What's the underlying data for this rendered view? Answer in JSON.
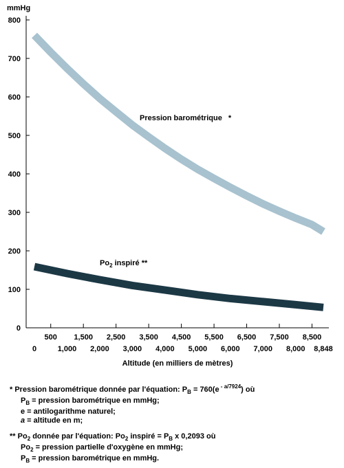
{
  "chart_data": {
    "type": "line",
    "y_unit": "mmHg",
    "xlabel": "Altitude (en milliers de mètres)",
    "ylim": [
      0,
      800
    ],
    "xlim": [
      0,
      8848
    ],
    "y_ticks": [
      "0",
      "100",
      "200",
      "300",
      "400",
      "500",
      "600",
      "700",
      "800"
    ],
    "x_ticks_top": [
      {
        "x": 500,
        "label": "500"
      },
      {
        "x": 1500,
        "label": "1,500"
      },
      {
        "x": 2500,
        "label": "2,500"
      },
      {
        "x": 3500,
        "label": "3,500"
      },
      {
        "x": 4500,
        "label": "4,500"
      },
      {
        "x": 5500,
        "label": "5,500"
      },
      {
        "x": 6500,
        "label": "6,500"
      },
      {
        "x": 7500,
        "label": "7,500"
      },
      {
        "x": 8500,
        "label": "8,500"
      }
    ],
    "x_ticks_bottom": [
      {
        "x": 0,
        "label": "0"
      },
      {
        "x": 1000,
        "label": "1,000"
      },
      {
        "x": 2000,
        "label": "2,000"
      },
      {
        "x": 3000,
        "label": "3,000"
      },
      {
        "x": 4000,
        "label": "4,000"
      },
      {
        "x": 5000,
        "label": "5,000"
      },
      {
        "x": 6000,
        "label": "6,000"
      },
      {
        "x": 7000,
        "label": "7,000"
      },
      {
        "x": 8000,
        "label": "8,000"
      },
      {
        "x": 8848,
        "label": "8,848"
      }
    ],
    "series": [
      {
        "name": "Pression barométrique",
        "label_suffix": "*",
        "color": "#a8c2cf",
        "x": [
          0,
          500,
          1000,
          1500,
          2000,
          2500,
          3000,
          3500,
          4000,
          4500,
          5000,
          5500,
          6000,
          6500,
          7000,
          7500,
          8000,
          8500,
          8848
        ],
        "values": [
          760,
          716,
          674,
          634,
          596,
          561,
          527,
          496,
          466,
          438,
          412,
          388,
          365,
          343,
          322,
          303,
          285,
          268,
          250
        ]
      },
      {
        "name_parts": [
          "Po",
          "2",
          " inspiré "
        ],
        "label_suffix": "**",
        "color": "#1c3845",
        "x": [
          0,
          1000,
          2000,
          3000,
          4000,
          5000,
          6000,
          7000,
          8000,
          8848
        ],
        "values": [
          159,
          141,
          125,
          110,
          98,
          86,
          76,
          68,
          60,
          53
        ]
      }
    ]
  },
  "notes": {
    "note1": {
      "marker": "* ",
      "text_a": "Pression barométrique donnée par l'équation: P",
      "sub_a": "B",
      "text_b": " = 760(e",
      "sup": " - a/7924",
      "text_c": ") où",
      "line2_a": "P",
      "line2_sub": "B",
      "line2_b": " = pression barométrique en mmHg;",
      "line3": "e = antilogarithme naturel;",
      "line4_a": "a",
      "line4_b": " = altitude en m;"
    },
    "note2": {
      "marker": "** ",
      "text_a": "Po",
      "sub_a": "2",
      "text_b": " donnée par l'équation: Po",
      "sub_b": "2",
      "text_c": " inspiré = P",
      "sub_c": "B",
      "text_d": " x 0,2093 où",
      "line2_a": "Po",
      "line2_sub": "2",
      "line2_b": " = pression partielle d'oxygène en mmHg;",
      "line3_a": "P",
      "line3_sub": "B",
      "line3_b": " = pression barométrique en mmHg."
    }
  }
}
